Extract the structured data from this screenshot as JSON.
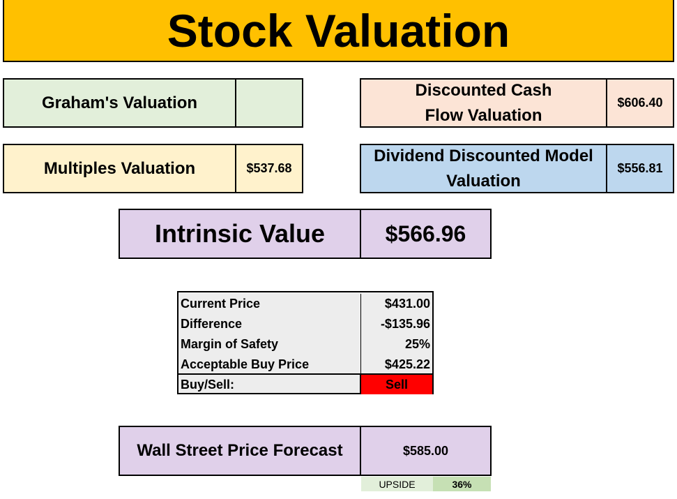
{
  "title": "Stock Valuation",
  "cards": {
    "graham": {
      "label": "Graham's Valuation",
      "value": ""
    },
    "dcf": {
      "label": "Discounted Cash Flow Valuation",
      "value": "$606.40"
    },
    "multiples": {
      "label": "Multiples Valuation",
      "value": "$537.68"
    },
    "ddm": {
      "label": "Dividend Discounted Model Valuation",
      "value": "$556.81"
    }
  },
  "intrinsic": {
    "label": "Intrinsic Value",
    "value": "$566.96"
  },
  "calc": {
    "current_price": {
      "label": "Current Price",
      "value": "$431.00"
    },
    "difference": {
      "label": "Difference",
      "value": "-$135.96"
    },
    "margin": {
      "label": "Margin of Safety",
      "value": "25%"
    },
    "buy_price": {
      "label": "Acceptable Buy Price",
      "value": "$425.22"
    },
    "buy_sell": {
      "label": "Buy/Sell:",
      "value": "Sell"
    }
  },
  "forecast": {
    "label": "Wall Street Price Forecast",
    "value": "$585.00"
  },
  "upside": {
    "label": "UPSIDE",
    "value": "36%"
  },
  "colors": {
    "title_bg": "#ffc000",
    "graham_bg": "#e2efda",
    "dcf_bg": "#fce4d6",
    "multiples_bg": "#fff2cc",
    "ddm_bg": "#bdd7ee",
    "intrinsic_bg": "#e0d0ea",
    "sell_bg": "#ff0000"
  }
}
